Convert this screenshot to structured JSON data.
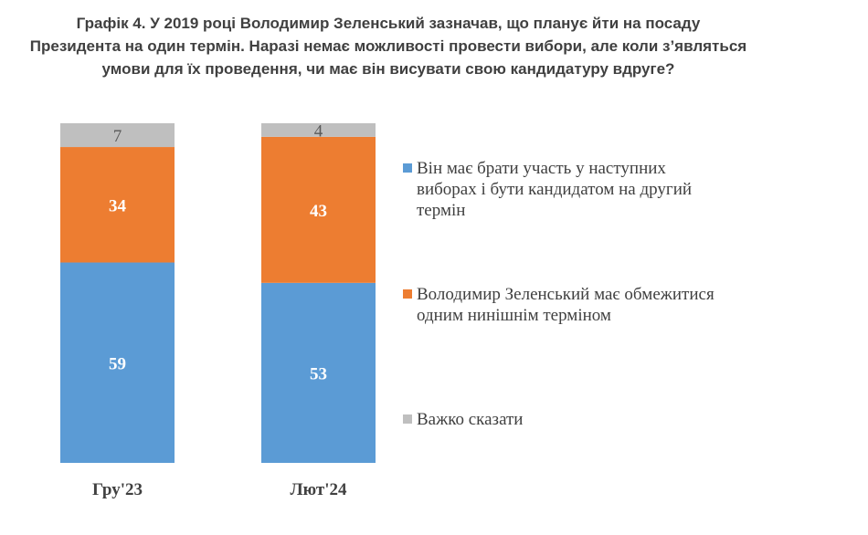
{
  "chart_data": {
    "type": "bar",
    "stacked": true,
    "percent_stacked": true,
    "title_lines": [
      "Графік 4. У 2019 році Володимир Зеленський зазначав, що планує йти на посаду",
      "Президента на один термін. Наразі немає можливості провести вибори, але коли з’являться",
      "умови для їх проведення, чи має він висувати свою кандидатуру вдруге?"
    ],
    "categories": [
      "Гру'23",
      "Лют'24"
    ],
    "series": [
      {
        "name": "Він має брати участь у наступних виборах і бути кандидатом на другий термін",
        "legend_lines": [
          "Він має брати участь у наступних",
          "виборах і бути кандидатом на другий",
          "термін"
        ],
        "color": "#5b9bd5",
        "values": [
          59,
          53
        ]
      },
      {
        "name": "Володимир Зеленський має обмежитися одним нинішнім терміном",
        "legend_lines": [
          "Володимир Зеленський має обмежитися",
          "одним нинішнім терміном"
        ],
        "color": "#ed7d31",
        "values": [
          34,
          43
        ]
      },
      {
        "name": "Важко сказати",
        "legend_lines": [
          "Важко сказати"
        ],
        "color": "#bfbfbf",
        "values": [
          7,
          4
        ]
      }
    ],
    "ylim": [
      0,
      100
    ],
    "grid": false,
    "legend_position": "right"
  }
}
